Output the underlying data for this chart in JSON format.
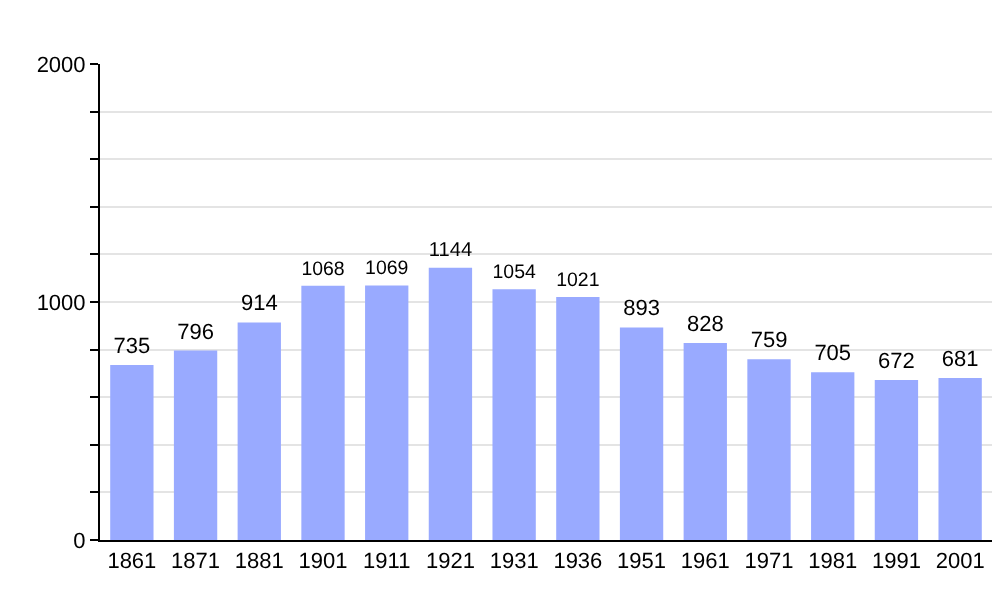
{
  "chart_data": {
    "type": "bar",
    "categories": [
      "1861",
      "1871",
      "1881",
      "1901",
      "1911",
      "1921",
      "1931",
      "1936",
      "1951",
      "1961",
      "1971",
      "1981",
      "1991",
      "2001"
    ],
    "values": [
      735,
      796,
      914,
      1068,
      1069,
      1144,
      1054,
      1021,
      893,
      828,
      759,
      705,
      672,
      681
    ],
    "color": "#99aaff",
    "data_labels": true,
    "ylim": [
      0,
      2000
    ],
    "yticks": [
      0,
      {
        "value": 200,
        "label": null
      },
      {
        "value": 400,
        "label": null
      },
      {
        "value": 600,
        "label": null
      },
      {
        "value": 800,
        "label": null
      },
      1000,
      {
        "value": 1200,
        "label": null
      },
      {
        "value": 1400,
        "label": null
      },
      {
        "value": 1600,
        "label": null
      },
      {
        "value": 1800,
        "label": null
      },
      2000
    ],
    "grid": "y"
  }
}
